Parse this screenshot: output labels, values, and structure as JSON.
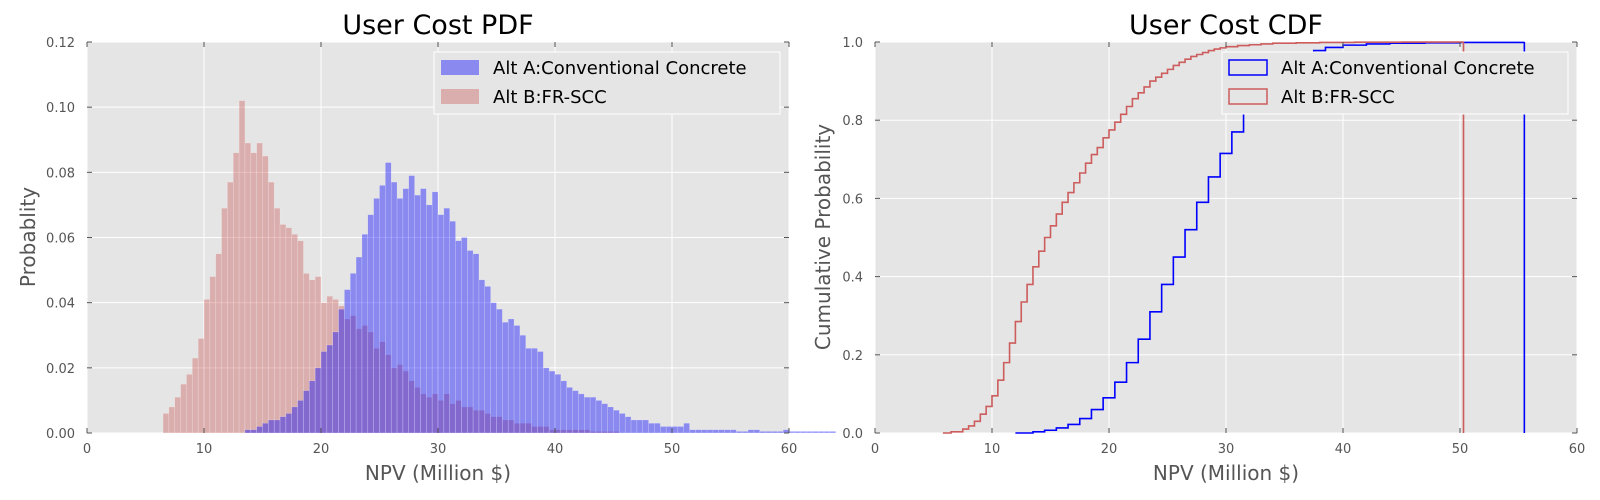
{
  "chart_data": [
    {
      "type": "bar",
      "title": "User Cost PDF",
      "xlabel": "NPV (Million $)",
      "ylabel": "Probablity",
      "xlim": [
        0,
        60
      ],
      "ylim": [
        0,
        0.12
      ],
      "xticks": [
        "0",
        "10",
        "20",
        "30",
        "40",
        "50",
        "60"
      ],
      "yticks": [
        "0.00",
        "0.02",
        "0.04",
        "0.06",
        "0.08",
        "0.10",
        "0.12"
      ],
      "grid": true,
      "legend": "top-right",
      "bin_width": 0.5,
      "series": [
        {
          "name": "Alt A:Conventional Concrete",
          "color": "#0000ff",
          "x_start": 13.5,
          "values": [
            0.001,
            0.001,
            0.002,
            0.003,
            0.004,
            0.004,
            0.005,
            0.006,
            0.008,
            0.01,
            0.013,
            0.016,
            0.02,
            0.025,
            0.027,
            0.031,
            0.038,
            0.044,
            0.049,
            0.054,
            0.061,
            0.067,
            0.072,
            0.076,
            0.083,
            0.077,
            0.072,
            0.075,
            0.079,
            0.073,
            0.075,
            0.07,
            0.074,
            0.067,
            0.069,
            0.065,
            0.059,
            0.06,
            0.056,
            0.055,
            0.047,
            0.045,
            0.04,
            0.038,
            0.034,
            0.035,
            0.033,
            0.03,
            0.026,
            0.026,
            0.025,
            0.02,
            0.019,
            0.018,
            0.016,
            0.014,
            0.013,
            0.012,
            0.011,
            0.011,
            0.01,
            0.009,
            0.008,
            0.007,
            0.006,
            0.005,
            0.004,
            0.004,
            0.004,
            0.003,
            0.003,
            0.002,
            0.002,
            0.002,
            0.002,
            0.003,
            0.001,
            0.001,
            0.001,
            0.001,
            0.001,
            0.001,
            0.001,
            0.001,
            0.0005,
            0.0005,
            0.001,
            0.001,
            0.0005,
            0.0005,
            0.0005,
            0.0005,
            0.001,
            0.0005,
            0.0005,
            0.0005,
            0.0005,
            0.0005,
            0.0005,
            0.0005,
            0.0005
          ]
        },
        {
          "name": "Alt B:FR-SCC",
          "color": "#d98c8c",
          "x_start": 6.5,
          "values": [
            0.006,
            0.008,
            0.011,
            0.015,
            0.018,
            0.023,
            0.029,
            0.041,
            0.048,
            0.055,
            0.069,
            0.077,
            0.086,
            0.102,
            0.089,
            0.086,
            0.089,
            0.085,
            0.077,
            0.069,
            0.064,
            0.063,
            0.061,
            0.059,
            0.049,
            0.047,
            0.048,
            0.04,
            0.042,
            0.041,
            0.039,
            0.035,
            0.036,
            0.032,
            0.033,
            0.031,
            0.026,
            0.028,
            0.024,
            0.02,
            0.021,
            0.019,
            0.016,
            0.014,
            0.012,
            0.011,
            0.012,
            0.01,
            0.012,
            0.009,
            0.01,
            0.008,
            0.008,
            0.007,
            0.007,
            0.006,
            0.005,
            0.005,
            0.004,
            0.004,
            0.003,
            0.003,
            0.003,
            0.002,
            0.002,
            0.002,
            0.001,
            0.001,
            0.001,
            0.001,
            0.001,
            0.001,
            0.001,
            0.0005,
            0.0005,
            0.0005,
            0.0005,
            0.0005
          ]
        }
      ]
    },
    {
      "type": "line",
      "step": true,
      "title": "User Cost CDF",
      "xlabel": "NPV (Million $)",
      "ylabel": "Cumulative Probability",
      "xlim": [
        0,
        60
      ],
      "ylim": [
        0,
        1.0
      ],
      "xticks": [
        "0",
        "10",
        "20",
        "30",
        "40",
        "50",
        "60"
      ],
      "yticks": [
        "0.0",
        "0.2",
        "0.4",
        "0.6",
        "0.8",
        "1.0"
      ],
      "grid": true,
      "legend": "top-right",
      "series": [
        {
          "name": "Alt A:Conventional Concrete",
          "color": "#0000ff",
          "x": [
            12.0,
            13.5,
            14.5,
            15.5,
            16.5,
            17.5,
            18.5,
            19.5,
            20.5,
            21.5,
            22.5,
            23.5,
            24.5,
            25.5,
            26.5,
            27.5,
            28.5,
            29.5,
            30.5,
            31.5,
            32.5,
            33.5,
            34.5,
            35.5,
            36.5,
            37.5,
            38.5,
            40.0,
            42.0,
            44.0,
            47.0,
            50.0,
            55.5
          ],
          "y": [
            0.0,
            0.003,
            0.007,
            0.013,
            0.022,
            0.037,
            0.06,
            0.09,
            0.13,
            0.18,
            0.24,
            0.31,
            0.38,
            0.45,
            0.52,
            0.59,
            0.655,
            0.715,
            0.77,
            0.82,
            0.86,
            0.895,
            0.925,
            0.95,
            0.965,
            0.978,
            0.986,
            0.992,
            0.995,
            0.997,
            0.998,
            0.999,
            1.0
          ],
          "drop_at": 55.5
        },
        {
          "name": "Alt B:FR-SCC",
          "color": "#cd5c5c",
          "x": [
            5.8,
            6.5,
            7.5,
            8.0,
            8.5,
            9.0,
            9.5,
            10.0,
            10.5,
            11.0,
            11.5,
            12.0,
            12.5,
            13.0,
            13.5,
            14.0,
            14.5,
            15.0,
            15.5,
            16.0,
            16.5,
            17.0,
            17.5,
            18.0,
            18.5,
            19.0,
            19.5,
            20.0,
            20.5,
            21.0,
            21.5,
            22.0,
            22.5,
            23.0,
            23.5,
            24.0,
            24.5,
            25.0,
            25.5,
            26.0,
            26.5,
            27.0,
            27.5,
            28.0,
            28.5,
            29.0,
            29.5,
            30.0,
            31.0,
            32.0,
            33.0,
            34.0,
            36.0,
            38.0,
            41.0,
            45.0,
            50.3
          ],
          "y": [
            0.0,
            0.003,
            0.01,
            0.018,
            0.03,
            0.048,
            0.068,
            0.095,
            0.135,
            0.18,
            0.23,
            0.285,
            0.335,
            0.38,
            0.425,
            0.465,
            0.5,
            0.53,
            0.56,
            0.59,
            0.615,
            0.64,
            0.665,
            0.69,
            0.712,
            0.73,
            0.755,
            0.775,
            0.795,
            0.815,
            0.835,
            0.855,
            0.87,
            0.885,
            0.9,
            0.91,
            0.92,
            0.93,
            0.94,
            0.948,
            0.956,
            0.963,
            0.968,
            0.973,
            0.978,
            0.982,
            0.985,
            0.988,
            0.991,
            0.993,
            0.995,
            0.997,
            0.998,
            0.999,
            0.9995,
            0.9998,
            1.0
          ],
          "drop_at": 50.3
        }
      ]
    }
  ]
}
